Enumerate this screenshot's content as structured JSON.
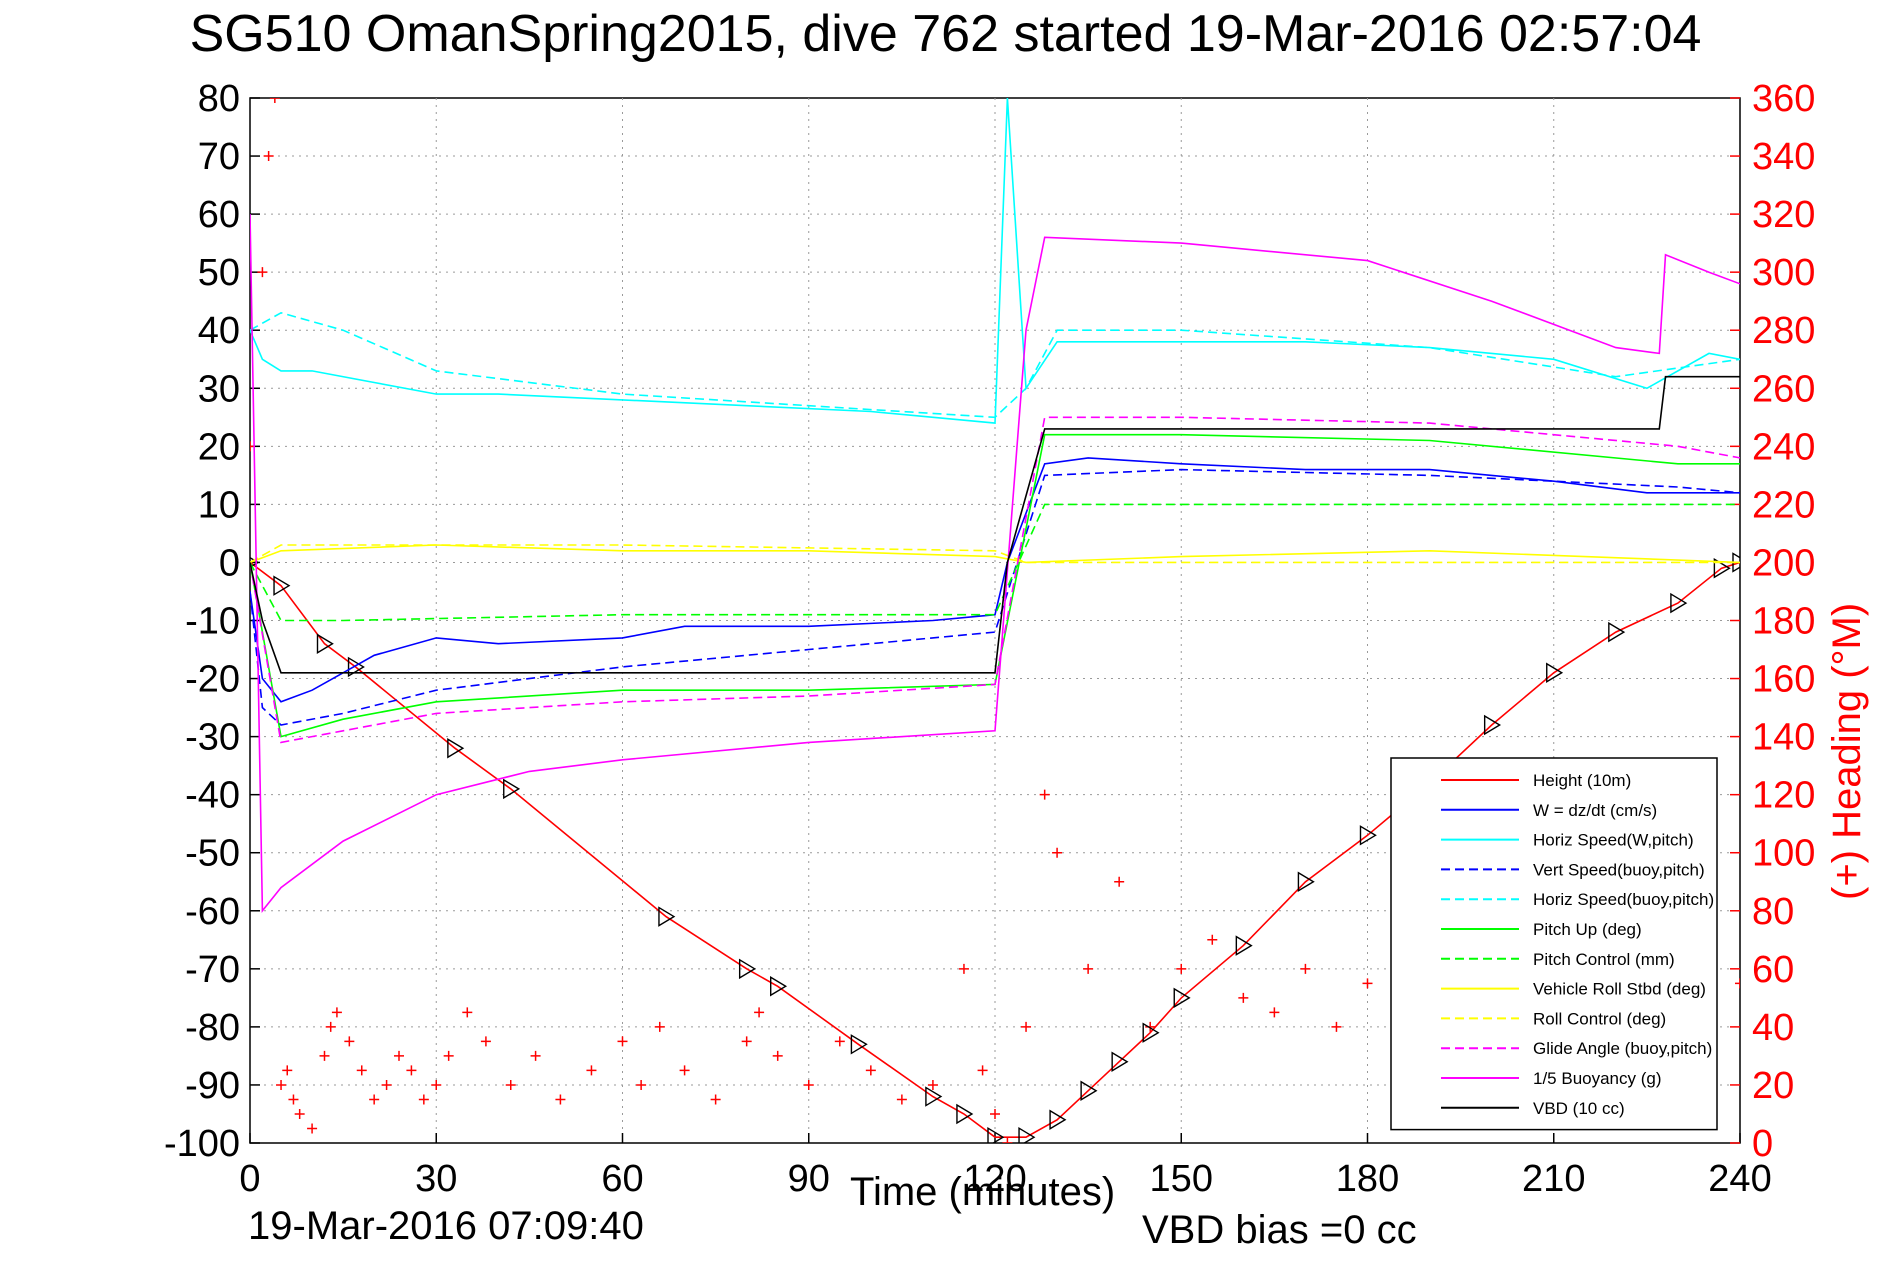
{
  "page": {
    "title": "SG510 OmanSpring2015, dive 762 started 19-Mar-2016 02:57:04",
    "footer_left": "19-Mar-2016 07:09:40",
    "footer_right": "VBD bias =0 cc"
  },
  "chart_data": {
    "type": "line",
    "title": "SG510 OmanSpring2015, dive 762 started 19-Mar-2016 02:57:04",
    "xlabel": "Time (minutes)",
    "ylabel": "",
    "ylabel_right": "(+) Heading (°M)",
    "xlim": [
      0,
      240
    ],
    "ylim": [
      -100,
      80
    ],
    "ylim_right": [
      0,
      360
    ],
    "x_ticks": [
      "0",
      "30",
      "60",
      "90",
      "120",
      "150",
      "180",
      "210",
      "240"
    ],
    "y_ticks": [
      "80",
      "70",
      "60",
      "50",
      "40",
      "30",
      "20",
      "10",
      "0",
      "-10",
      "-20",
      "-30",
      "-40",
      "-50",
      "-60",
      "-70",
      "-80",
      "-90",
      "-100"
    ],
    "y_ticks_right": [
      "360",
      "340",
      "320",
      "300",
      "280",
      "260",
      "240",
      "220",
      "200",
      "180",
      "160",
      "140",
      "120",
      "100",
      "80",
      "60",
      "40",
      "20",
      "0"
    ],
    "grid": true,
    "legend_position": "bottom-right",
    "colors": {
      "red": "#ff0000",
      "blue": "#0000ff",
      "cyan": "#00ffff",
      "green": "#00ff00",
      "yellow": "#ffff00",
      "magenta": "#ff00ff",
      "black": "#000000"
    },
    "series": [
      {
        "name": "Height (10m)",
        "color": "#ff0000",
        "dash": "solid",
        "marker": "triangle",
        "x": [
          0,
          5,
          12,
          17,
          33,
          42,
          67,
          80,
          85,
          98,
          110,
          115,
          120,
          125,
          130,
          135,
          140,
          145,
          150,
          160,
          170,
          180,
          190,
          200,
          210,
          220,
          230,
          237,
          240
        ],
        "y": [
          0,
          -4,
          -14,
          -18,
          -32,
          -39,
          -61,
          -70,
          -73,
          -83,
          -92,
          -95,
          -99,
          -99,
          -96,
          -91,
          -86,
          -81,
          -75,
          -66,
          -55,
          -47,
          -38,
          -28,
          -19,
          -12,
          -7,
          -1,
          0
        ]
      },
      {
        "name": "W = dz/dt (cm/s)",
        "color": "#0000ff",
        "dash": "solid",
        "x": [
          0,
          2,
          5,
          10,
          15,
          20,
          30,
          40,
          60,
          70,
          90,
          110,
          120,
          122,
          128,
          135,
          150,
          170,
          190,
          210,
          225,
          235,
          240
        ],
        "y": [
          -5,
          -20,
          -24,
          -22,
          -19,
          -16,
          -13,
          -14,
          -13,
          -11,
          -11,
          -10,
          -9,
          0,
          17,
          18,
          17,
          16,
          16,
          14,
          12,
          12,
          12
        ]
      },
      {
        "name": "Horiz Speed(W,pitch)",
        "color": "#00ffff",
        "dash": "solid",
        "x": [
          0,
          2,
          5,
          10,
          20,
          30,
          40,
          60,
          80,
          100,
          120,
          122,
          125,
          130,
          150,
          170,
          190,
          210,
          225,
          235,
          240
        ],
        "y": [
          40,
          35,
          33,
          33,
          31,
          29,
          29,
          28,
          27,
          26,
          24,
          80,
          30,
          38,
          38,
          38,
          37,
          35,
          30,
          36,
          35
        ]
      },
      {
        "name": "Vert Speed(buoy,pitch)",
        "color": "#0000ff",
        "dash": "dashed",
        "x": [
          0,
          2,
          5,
          15,
          30,
          60,
          90,
          120,
          128,
          150,
          190,
          230,
          240
        ],
        "y": [
          -5,
          -25,
          -28,
          -26,
          -22,
          -18,
          -15,
          -12,
          15,
          16,
          15,
          13,
          12
        ]
      },
      {
        "name": "Horiz Speed(buoy,pitch)",
        "color": "#00ffff",
        "dash": "dashed",
        "x": [
          0,
          5,
          15,
          30,
          60,
          90,
          120,
          125,
          130,
          150,
          190,
          220,
          240
        ],
        "y": [
          40,
          43,
          40,
          33,
          29,
          27,
          25,
          30,
          40,
          40,
          37,
          32,
          35
        ]
      },
      {
        "name": "Pitch Up (deg)",
        "color": "#00ff00",
        "dash": "solid",
        "x": [
          0,
          5,
          15,
          30,
          60,
          90,
          120,
          128,
          150,
          190,
          230,
          240
        ],
        "y": [
          0,
          -30,
          -27,
          -24,
          -22,
          -22,
          -21,
          22,
          22,
          21,
          17,
          17
        ]
      },
      {
        "name": "Pitch Control (mm)",
        "color": "#00ff00",
        "dash": "dashed",
        "x": [
          0,
          5,
          15,
          60,
          120,
          128,
          150,
          190,
          240
        ],
        "y": [
          0,
          -10,
          -10,
          -9,
          -9,
          10,
          10,
          10,
          10
        ]
      },
      {
        "name": "Vehicle Roll Stbd (deg)",
        "color": "#ffff00",
        "dash": "solid",
        "x": [
          0,
          5,
          30,
          60,
          90,
          120,
          125,
          150,
          190,
          240
        ],
        "y": [
          0,
          2,
          3,
          2,
          2,
          1,
          0,
          1,
          2,
          0
        ]
      },
      {
        "name": "Roll Control (deg)",
        "color": "#ffff00",
        "dash": "dashed",
        "x": [
          0,
          5,
          60,
          120,
          125,
          190,
          240
        ],
        "y": [
          0,
          3,
          3,
          2,
          0,
          0,
          0
        ]
      },
      {
        "name": "Glide Angle (buoy,pitch)",
        "color": "#ff00ff",
        "dash": "dashed",
        "x": [
          0,
          5,
          15,
          30,
          60,
          90,
          120,
          128,
          150,
          190,
          230,
          240
        ],
        "y": [
          0,
          -31,
          -29,
          -26,
          -24,
          -23,
          -21,
          25,
          25,
          24,
          20,
          18
        ]
      },
      {
        "name": "1/5 Buoyancy (g)",
        "color": "#ff00ff",
        "dash": "solid",
        "x": [
          0,
          2,
          5,
          15,
          30,
          45,
          60,
          90,
          120,
          125,
          128,
          150,
          180,
          200,
          220,
          227,
          228,
          235,
          240
        ],
        "y": [
          60,
          -60,
          -56,
          -48,
          -40,
          -36,
          -34,
          -31,
          -29,
          40,
          56,
          55,
          52,
          45,
          37,
          36,
          53,
          50,
          48
        ]
      },
      {
        "name": "VBD (10 cc)",
        "color": "#000000",
        "dash": "solid",
        "x": [
          0,
          2,
          5,
          10,
          60,
          100,
          120,
          122,
          128,
          227,
          228,
          240
        ],
        "y": [
          0,
          -10,
          -19,
          -19,
          -19,
          -19,
          -19,
          0,
          23,
          23,
          32,
          32
        ]
      }
    ],
    "heading": {
      "name": "(+) Heading (°M)",
      "color": "#ff0000",
      "marker": "+",
      "axis": "right",
      "x": [
        0,
        2,
        3,
        4,
        5,
        6,
        7,
        8,
        10,
        12,
        13,
        14,
        16,
        18,
        20,
        22,
        24,
        26,
        28,
        30,
        32,
        35,
        38,
        42,
        46,
        50,
        55,
        60,
        63,
        66,
        70,
        75,
        80,
        82,
        85,
        90,
        95,
        100,
        105,
        110,
        115,
        118,
        120,
        122,
        125,
        128,
        130,
        135,
        140,
        145,
        150,
        155,
        160,
        165,
        170,
        175,
        180,
        185,
        190,
        195,
        200,
        205,
        210,
        215,
        220,
        225,
        230,
        235,
        240
      ],
      "y": [
        240,
        300,
        340,
        360,
        20,
        25,
        15,
        10,
        5,
        30,
        40,
        45,
        35,
        25,
        15,
        20,
        30,
        25,
        15,
        20,
        30,
        45,
        35,
        20,
        30,
        15,
        25,
        35,
        20,
        40,
        25,
        15,
        35,
        45,
        30,
        20,
        35,
        25,
        15,
        20,
        60,
        25,
        10,
        0,
        40,
        120,
        100,
        60,
        90,
        40,
        60,
        70,
        50,
        45,
        60,
        40,
        55,
        65,
        50,
        40,
        60,
        45,
        55,
        65,
        50,
        40,
        60,
        40,
        55
      ]
    }
  },
  "legend": {
    "items": [
      {
        "label": "Height (10m)",
        "color": "#ff0000",
        "dash": "solid"
      },
      {
        "label": "W = dz/dt (cm/s)",
        "color": "#0000ff",
        "dash": "solid"
      },
      {
        "label": "Horiz Speed(W,pitch)",
        "color": "#00ffff",
        "dash": "solid"
      },
      {
        "label": "Vert Speed(buoy,pitch)",
        "color": "#0000ff",
        "dash": "dashed"
      },
      {
        "label": "Horiz Speed(buoy,pitch)",
        "color": "#00ffff",
        "dash": "dashed"
      },
      {
        "label": "Pitch Up (deg)",
        "color": "#00ff00",
        "dash": "solid"
      },
      {
        "label": "Pitch Control (mm)",
        "color": "#00ff00",
        "dash": "dashed"
      },
      {
        "label": "Vehicle Roll Stbd (deg)",
        "color": "#ffff00",
        "dash": "solid"
      },
      {
        "label": "Roll Control (deg)",
        "color": "#ffff00",
        "dash": "dashed"
      },
      {
        "label": "Glide Angle (buoy,pitch)",
        "color": "#ff00ff",
        "dash": "dashed"
      },
      {
        "label": "1/5 Buoyancy (g)",
        "color": "#ff00ff",
        "dash": "solid"
      },
      {
        "label": "VBD (10 cc)",
        "color": "#000000",
        "dash": "solid"
      }
    ]
  }
}
